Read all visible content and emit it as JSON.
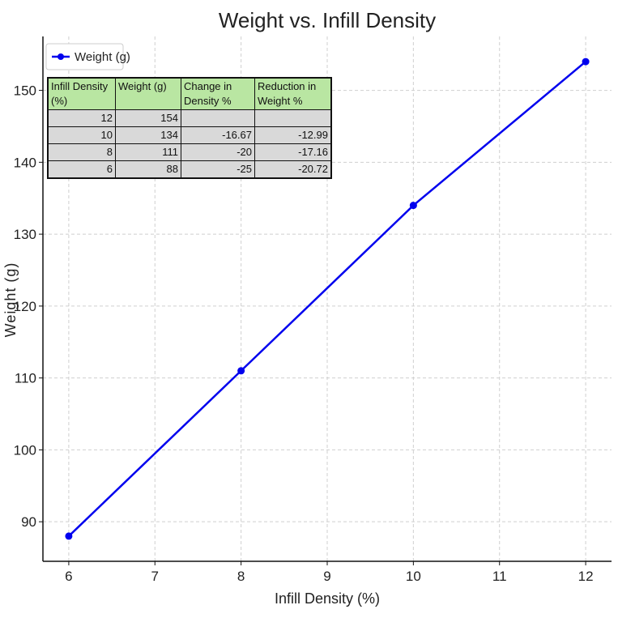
{
  "chart_data": {
    "type": "line",
    "title": "Weight vs. Infill Density",
    "xlabel": "Infill Density (%)",
    "ylabel": "Weight (g)",
    "x": [
      6,
      8,
      10,
      12
    ],
    "series": [
      {
        "name": "Weight (g)",
        "values": [
          88,
          111,
          134,
          154
        ],
        "color": "#0000ee"
      }
    ],
    "xlim": [
      5.7,
      12.3
    ],
    "ylim": [
      84.5,
      157.5
    ],
    "xticks": [
      "6",
      "7",
      "8",
      "9",
      "10",
      "11",
      "12"
    ],
    "yticks": [
      "90",
      "100",
      "110",
      "120",
      "130",
      "140",
      "150"
    ],
    "grid": true,
    "legend_position": "top-left"
  },
  "table": {
    "headers": [
      "Infill Density (%)",
      "Weight (g)",
      "Change in Density %",
      "Reduction in Weight %"
    ],
    "rows": [
      [
        "12",
        "154",
        "",
        ""
      ],
      [
        "10",
        "134",
        "-16.67",
        "-12.99"
      ],
      [
        "8",
        "111",
        "-20",
        "-17.16"
      ],
      [
        "6",
        "88",
        "-25",
        "-20.72"
      ]
    ]
  }
}
